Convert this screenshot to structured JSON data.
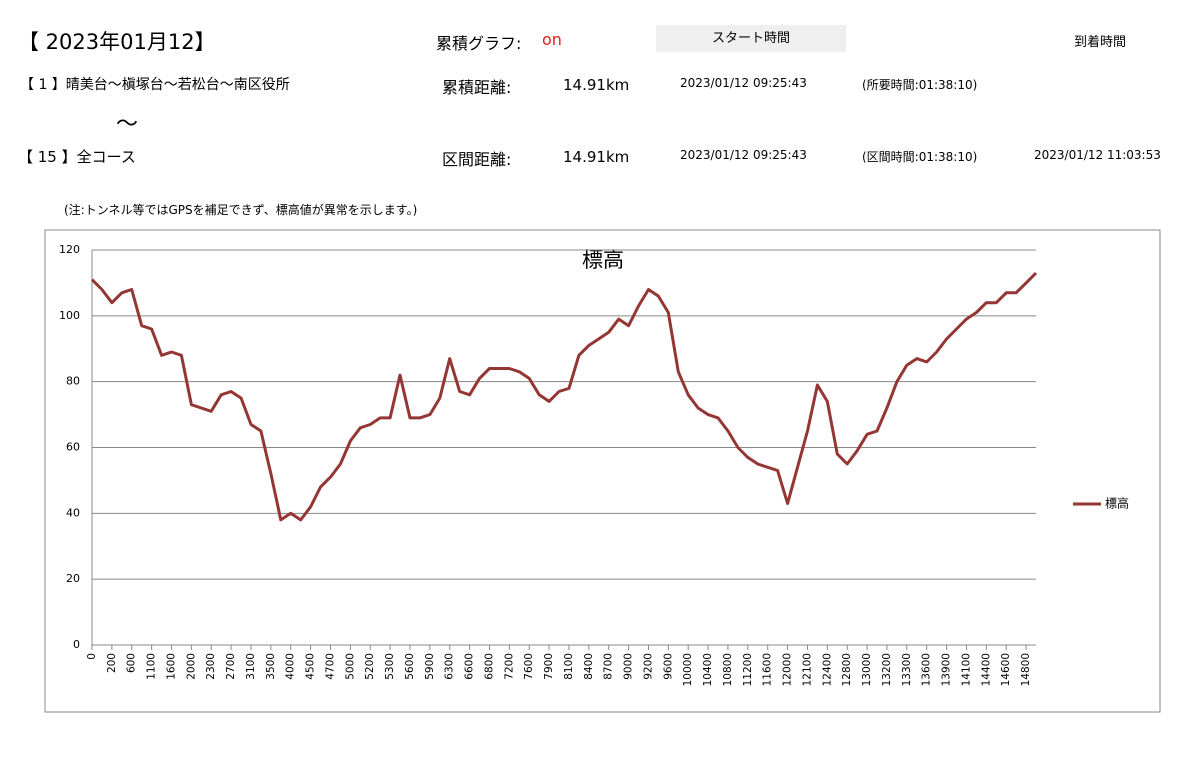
{
  "header": {
    "date": "【 2023年01月12】",
    "graph_label": "累積グラフ:",
    "graph_value": "on",
    "start_button": "スタート時間",
    "arrival_label": "到着時間",
    "note": "(注:トンネル等ではGPSを補足できず、標高値が異常を示します。)"
  },
  "rows": [
    {
      "route": "【 1 】晴美台～槇塚台～若松台～南区役所",
      "distance_label": "累積距離:",
      "distance": "14.91km",
      "start": "2023/01/12 09:25:43",
      "duration": "(所要時間:01:38:10)"
    },
    {
      "route": "【 15 】全コース",
      "distance_label": "区間距離:",
      "distance": "14.91km",
      "start": "2023/01/12 09:25:43",
      "duration": "(区間時間:01:38:10)",
      "arrival": "2023/01/12 11:03:53"
    }
  ],
  "separator": "～",
  "chart_data": {
    "type": "line",
    "title": "標高",
    "categories": [
      "0",
      null,
      "200",
      null,
      "600",
      null,
      "1100",
      null,
      "1600",
      null,
      "2000",
      null,
      "2300",
      null,
      "2700",
      null,
      "3100",
      null,
      "3500",
      null,
      "4000",
      null,
      "4500",
      null,
      "4700",
      null,
      "5000",
      null,
      "5200",
      null,
      "5300",
      null,
      "5600",
      null,
      "5900",
      null,
      "6300",
      null,
      "6600",
      null,
      "6800",
      null,
      "7200",
      null,
      "7600",
      null,
      "7900",
      null,
      "8100",
      null,
      "8400",
      null,
      "8700",
      null,
      "9000",
      null,
      "9200",
      null,
      "9600",
      null,
      "10000",
      null,
      "10400",
      null,
      "10800",
      null,
      "11200",
      null,
      "11600",
      null,
      "12000",
      null,
      "12100",
      null,
      "12400",
      null,
      "12800",
      null,
      "13000",
      null,
      "13200",
      null,
      "13300",
      null,
      "13600",
      null,
      "13900",
      null,
      "14100",
      null,
      "14400",
      null,
      "14600",
      null,
      "14800",
      null
    ],
    "series": [
      {
        "name": "標高",
        "color": "#943634",
        "values": [
          111,
          108,
          104,
          107,
          108,
          97,
          96,
          88,
          89,
          88,
          73,
          72,
          71,
          76,
          77,
          75,
          67,
          65,
          52,
          38,
          40,
          38,
          42,
          48,
          51,
          55,
          62,
          66,
          67,
          69,
          69,
          82,
          69,
          69,
          70,
          75,
          87,
          77,
          76,
          81,
          84,
          84,
          84,
          83,
          81,
          76,
          74,
          77,
          78,
          88,
          91,
          93,
          95,
          99,
          97,
          103,
          108,
          106,
          101,
          83,
          76,
          72,
          70,
          69,
          65,
          60,
          57,
          55,
          54,
          53,
          43,
          54,
          65,
          79,
          74,
          58,
          55,
          59,
          64,
          65,
          72,
          80,
          85,
          87,
          86,
          89,
          93,
          96,
          99,
          101,
          104,
          104,
          107,
          107,
          110,
          113
        ]
      }
    ],
    "ylim": [
      0,
      120
    ],
    "yticks": [
      0,
      20,
      40,
      60,
      80,
      100,
      120
    ],
    "grid": true,
    "legend": "right"
  }
}
